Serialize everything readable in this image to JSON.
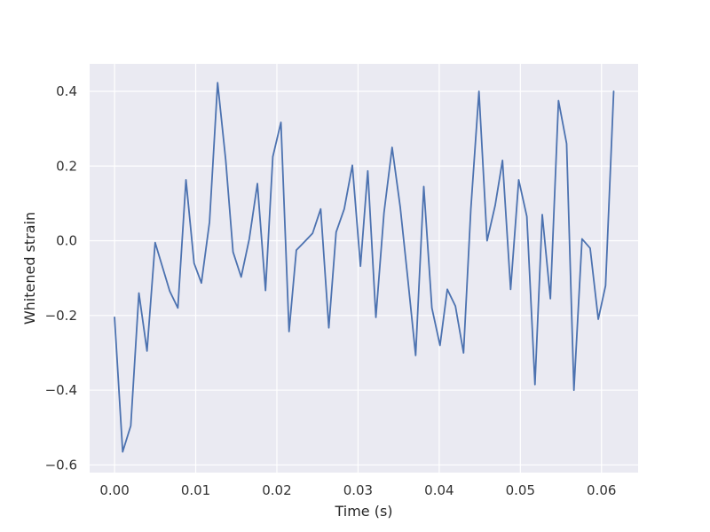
{
  "chart_data": {
    "type": "line",
    "title": "",
    "xlabel": "Time (s)",
    "ylabel": "Whitened strain",
    "xlim": [
      -0.00307,
      0.06451
    ],
    "ylim": [
      -0.6206,
      0.4736
    ],
    "grid": true,
    "legend": "none",
    "colors": {
      "background": "#eaeaf2",
      "grid": "#ffffff",
      "line": "#4c72b0"
    },
    "x_ticks": [
      {
        "value": 0.0,
        "label": "0.00"
      },
      {
        "value": 0.01,
        "label": "0.01"
      },
      {
        "value": 0.02,
        "label": "0.02"
      },
      {
        "value": 0.03,
        "label": "0.03"
      },
      {
        "value": 0.04,
        "label": "0.04"
      },
      {
        "value": 0.05,
        "label": "0.05"
      },
      {
        "value": 0.06,
        "label": "0.06"
      }
    ],
    "y_ticks": [
      {
        "value": -0.6,
        "label": "−0.6"
      },
      {
        "value": -0.4,
        "label": "−0.4"
      },
      {
        "value": -0.2,
        "label": "−0.2"
      },
      {
        "value": 0.0,
        "label": "0.0"
      },
      {
        "value": 0.2,
        "label": "0.2"
      },
      {
        "value": 0.4,
        "label": "0.4"
      }
    ],
    "series": [
      {
        "x": [
          0.0,
          0.001,
          0.002,
          0.003,
          0.004,
          0.005,
          0.0059,
          0.0068,
          0.0078,
          0.0088,
          0.0098,
          0.0107,
          0.0117,
          0.0127,
          0.0137,
          0.0146,
          0.0156,
          0.0166,
          0.0176,
          0.0186,
          0.0195,
          0.0205,
          0.0215,
          0.0224,
          0.0234,
          0.0244,
          0.0254,
          0.0264,
          0.0273,
          0.0283,
          0.0293,
          0.0303,
          0.0312,
          0.0322,
          0.0332,
          0.0342,
          0.0352,
          0.0361,
          0.0371,
          0.0381,
          0.0391,
          0.0401,
          0.041,
          0.042,
          0.043,
          0.0439,
          0.0449,
          0.0459,
          0.0469,
          0.0478,
          0.0488,
          0.0498,
          0.0508,
          0.0518,
          0.0527,
          0.0537,
          0.0547,
          0.0557,
          0.0566,
          0.0576,
          0.0586,
          0.0596,
          0.0605,
          0.0615
        ],
        "y": [
          -0.205,
          -0.565,
          -0.495,
          -0.14,
          -0.295,
          -0.005,
          -0.07,
          -0.135,
          -0.18,
          0.163,
          -0.06,
          -0.113,
          0.05,
          0.423,
          0.215,
          -0.03,
          -0.097,
          0.005,
          0.153,
          -0.133,
          0.225,
          0.317,
          -0.243,
          -0.025,
          -0.003,
          0.02,
          0.085,
          -0.233,
          0.023,
          0.085,
          0.202,
          -0.068,
          0.187,
          -0.205,
          0.075,
          0.25,
          0.09,
          -0.095,
          -0.307,
          0.145,
          -0.18,
          -0.28,
          -0.13,
          -0.175,
          -0.3,
          0.085,
          0.4,
          0.0,
          0.095,
          0.215,
          -0.13,
          0.163,
          0.065,
          -0.385,
          0.07,
          -0.155,
          0.375,
          0.26,
          -0.4,
          0.005,
          -0.02,
          -0.21,
          -0.12,
          0.4
        ]
      }
    ]
  }
}
